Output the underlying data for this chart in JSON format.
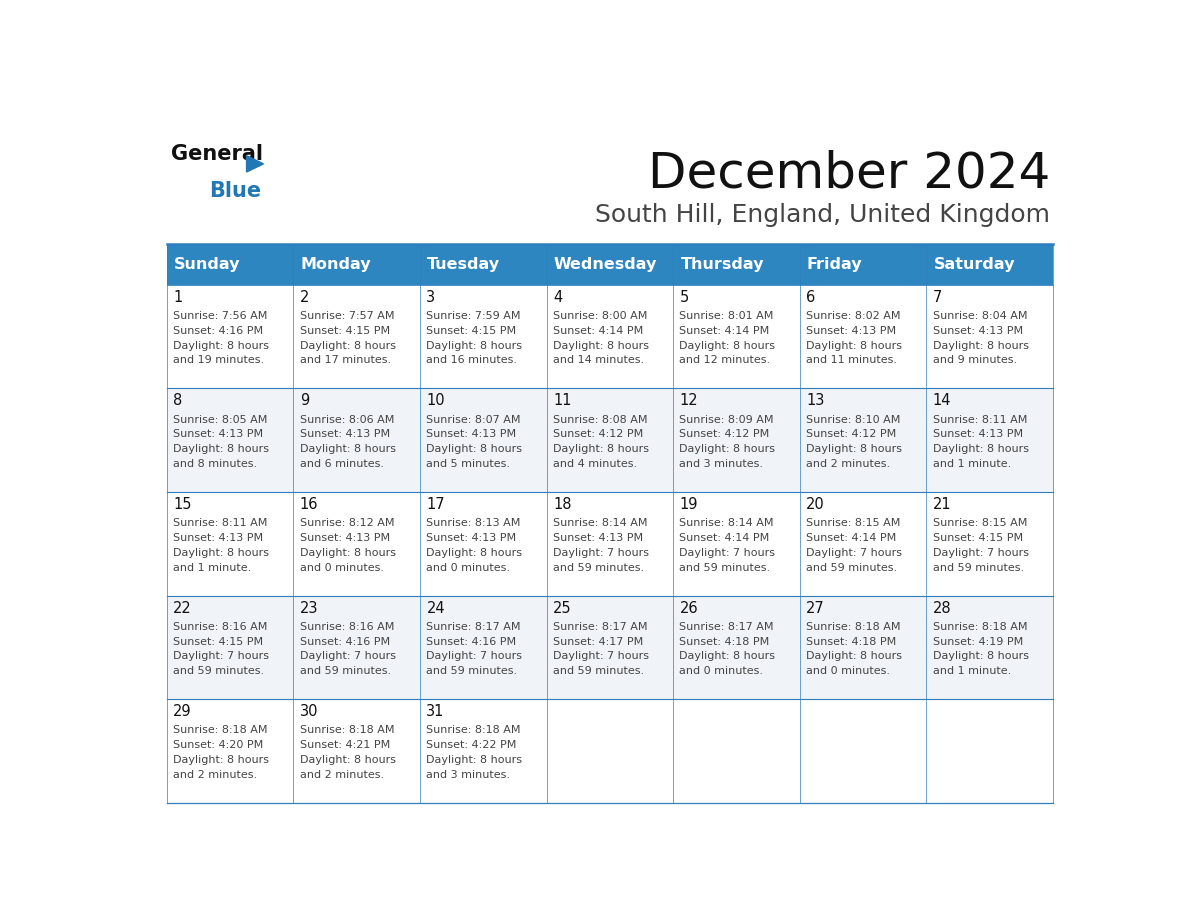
{
  "title": "December 2024",
  "subtitle": "South Hill, England, United Kingdom",
  "header_color": "#2E86C1",
  "header_text_color": "#FFFFFF",
  "days_of_week": [
    "Sunday",
    "Monday",
    "Tuesday",
    "Wednesday",
    "Thursday",
    "Friday",
    "Saturday"
  ],
  "bg_color": "#FFFFFF",
  "border_color": "#2E7DBF",
  "day_num_color": "#111111",
  "text_color": "#444444",
  "logo_color": "#2278B5",
  "calendar_data": [
    [
      {
        "day": 1,
        "sunrise": "7:56 AM",
        "sunset": "4:16 PM",
        "daylight": "8 hours and 19 minutes."
      },
      {
        "day": 2,
        "sunrise": "7:57 AM",
        "sunset": "4:15 PM",
        "daylight": "8 hours and 17 minutes."
      },
      {
        "day": 3,
        "sunrise": "7:59 AM",
        "sunset": "4:15 PM",
        "daylight": "8 hours and 16 minutes."
      },
      {
        "day": 4,
        "sunrise": "8:00 AM",
        "sunset": "4:14 PM",
        "daylight": "8 hours and 14 minutes."
      },
      {
        "day": 5,
        "sunrise": "8:01 AM",
        "sunset": "4:14 PM",
        "daylight": "8 hours and 12 minutes."
      },
      {
        "day": 6,
        "sunrise": "8:02 AM",
        "sunset": "4:13 PM",
        "daylight": "8 hours and 11 minutes."
      },
      {
        "day": 7,
        "sunrise": "8:04 AM",
        "sunset": "4:13 PM",
        "daylight": "8 hours and 9 minutes."
      }
    ],
    [
      {
        "day": 8,
        "sunrise": "8:05 AM",
        "sunset": "4:13 PM",
        "daylight": "8 hours and 8 minutes."
      },
      {
        "day": 9,
        "sunrise": "8:06 AM",
        "sunset": "4:13 PM",
        "daylight": "8 hours and 6 minutes."
      },
      {
        "day": 10,
        "sunrise": "8:07 AM",
        "sunset": "4:13 PM",
        "daylight": "8 hours and 5 minutes."
      },
      {
        "day": 11,
        "sunrise": "8:08 AM",
        "sunset": "4:12 PM",
        "daylight": "8 hours and 4 minutes."
      },
      {
        "day": 12,
        "sunrise": "8:09 AM",
        "sunset": "4:12 PM",
        "daylight": "8 hours and 3 minutes."
      },
      {
        "day": 13,
        "sunrise": "8:10 AM",
        "sunset": "4:12 PM",
        "daylight": "8 hours and 2 minutes."
      },
      {
        "day": 14,
        "sunrise": "8:11 AM",
        "sunset": "4:13 PM",
        "daylight": "8 hours and 1 minute."
      }
    ],
    [
      {
        "day": 15,
        "sunrise": "8:11 AM",
        "sunset": "4:13 PM",
        "daylight": "8 hours and 1 minute."
      },
      {
        "day": 16,
        "sunrise": "8:12 AM",
        "sunset": "4:13 PM",
        "daylight": "8 hours and 0 minutes."
      },
      {
        "day": 17,
        "sunrise": "8:13 AM",
        "sunset": "4:13 PM",
        "daylight": "8 hours and 0 minutes."
      },
      {
        "day": 18,
        "sunrise": "8:14 AM",
        "sunset": "4:13 PM",
        "daylight": "7 hours and 59 minutes."
      },
      {
        "day": 19,
        "sunrise": "8:14 AM",
        "sunset": "4:14 PM",
        "daylight": "7 hours and 59 minutes."
      },
      {
        "day": 20,
        "sunrise": "8:15 AM",
        "sunset": "4:14 PM",
        "daylight": "7 hours and 59 minutes."
      },
      {
        "day": 21,
        "sunrise": "8:15 AM",
        "sunset": "4:15 PM",
        "daylight": "7 hours and 59 minutes."
      }
    ],
    [
      {
        "day": 22,
        "sunrise": "8:16 AM",
        "sunset": "4:15 PM",
        "daylight": "7 hours and 59 minutes."
      },
      {
        "day": 23,
        "sunrise": "8:16 AM",
        "sunset": "4:16 PM",
        "daylight": "7 hours and 59 minutes."
      },
      {
        "day": 24,
        "sunrise": "8:17 AM",
        "sunset": "4:16 PM",
        "daylight": "7 hours and 59 minutes."
      },
      {
        "day": 25,
        "sunrise": "8:17 AM",
        "sunset": "4:17 PM",
        "daylight": "7 hours and 59 minutes."
      },
      {
        "day": 26,
        "sunrise": "8:17 AM",
        "sunset": "4:18 PM",
        "daylight": "8 hours and 0 minutes."
      },
      {
        "day": 27,
        "sunrise": "8:18 AM",
        "sunset": "4:18 PM",
        "daylight": "8 hours and 0 minutes."
      },
      {
        "day": 28,
        "sunrise": "8:18 AM",
        "sunset": "4:19 PM",
        "daylight": "8 hours and 1 minute."
      }
    ],
    [
      {
        "day": 29,
        "sunrise": "8:18 AM",
        "sunset": "4:20 PM",
        "daylight": "8 hours and 2 minutes."
      },
      {
        "day": 30,
        "sunrise": "8:18 AM",
        "sunset": "4:21 PM",
        "daylight": "8 hours and 2 minutes."
      },
      {
        "day": 31,
        "sunrise": "8:18 AM",
        "sunset": "4:22 PM",
        "daylight": "8 hours and 3 minutes."
      },
      null,
      null,
      null,
      null
    ]
  ]
}
